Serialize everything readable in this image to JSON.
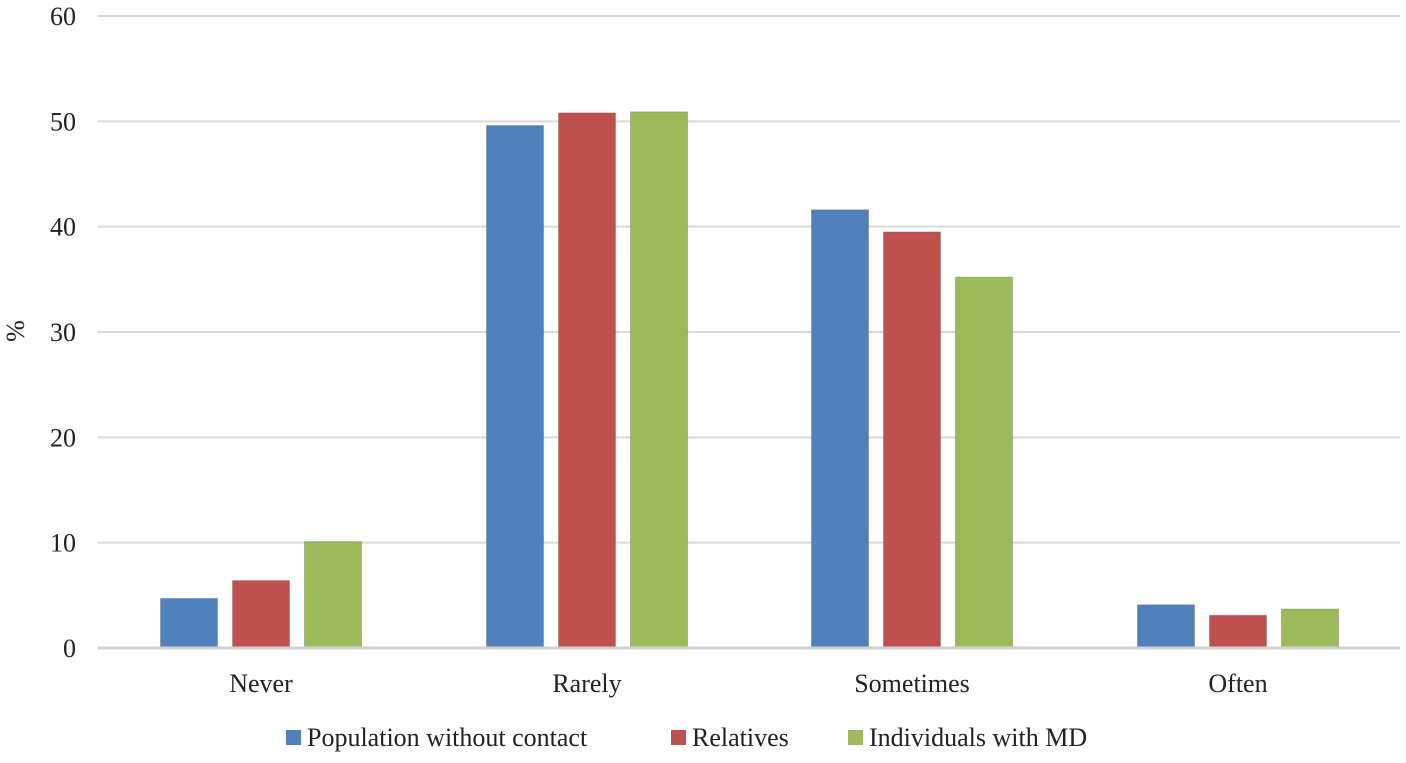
{
  "chart_data": {
    "type": "bar",
    "title": "",
    "xlabel": "",
    "ylabel": "%",
    "ylim": [
      0,
      60
    ],
    "yticks": [
      0,
      10,
      20,
      30,
      40,
      50,
      60
    ],
    "grid": true,
    "legend_position": "bottom",
    "categories": [
      "Never",
      "Rarely",
      "Sometimes",
      "Often"
    ],
    "series": [
      {
        "name": "Population without contact",
        "color": "#4f81bd",
        "values": [
          4.7,
          49.6,
          41.6,
          4.1
        ]
      },
      {
        "name": "Relatives",
        "color": "#c0504d",
        "values": [
          6.4,
          50.8,
          39.5,
          3.1
        ]
      },
      {
        "name": "Individuals with MD",
        "color": "#9bbb59",
        "values": [
          10.1,
          50.9,
          35.2,
          3.7
        ]
      }
    ]
  }
}
